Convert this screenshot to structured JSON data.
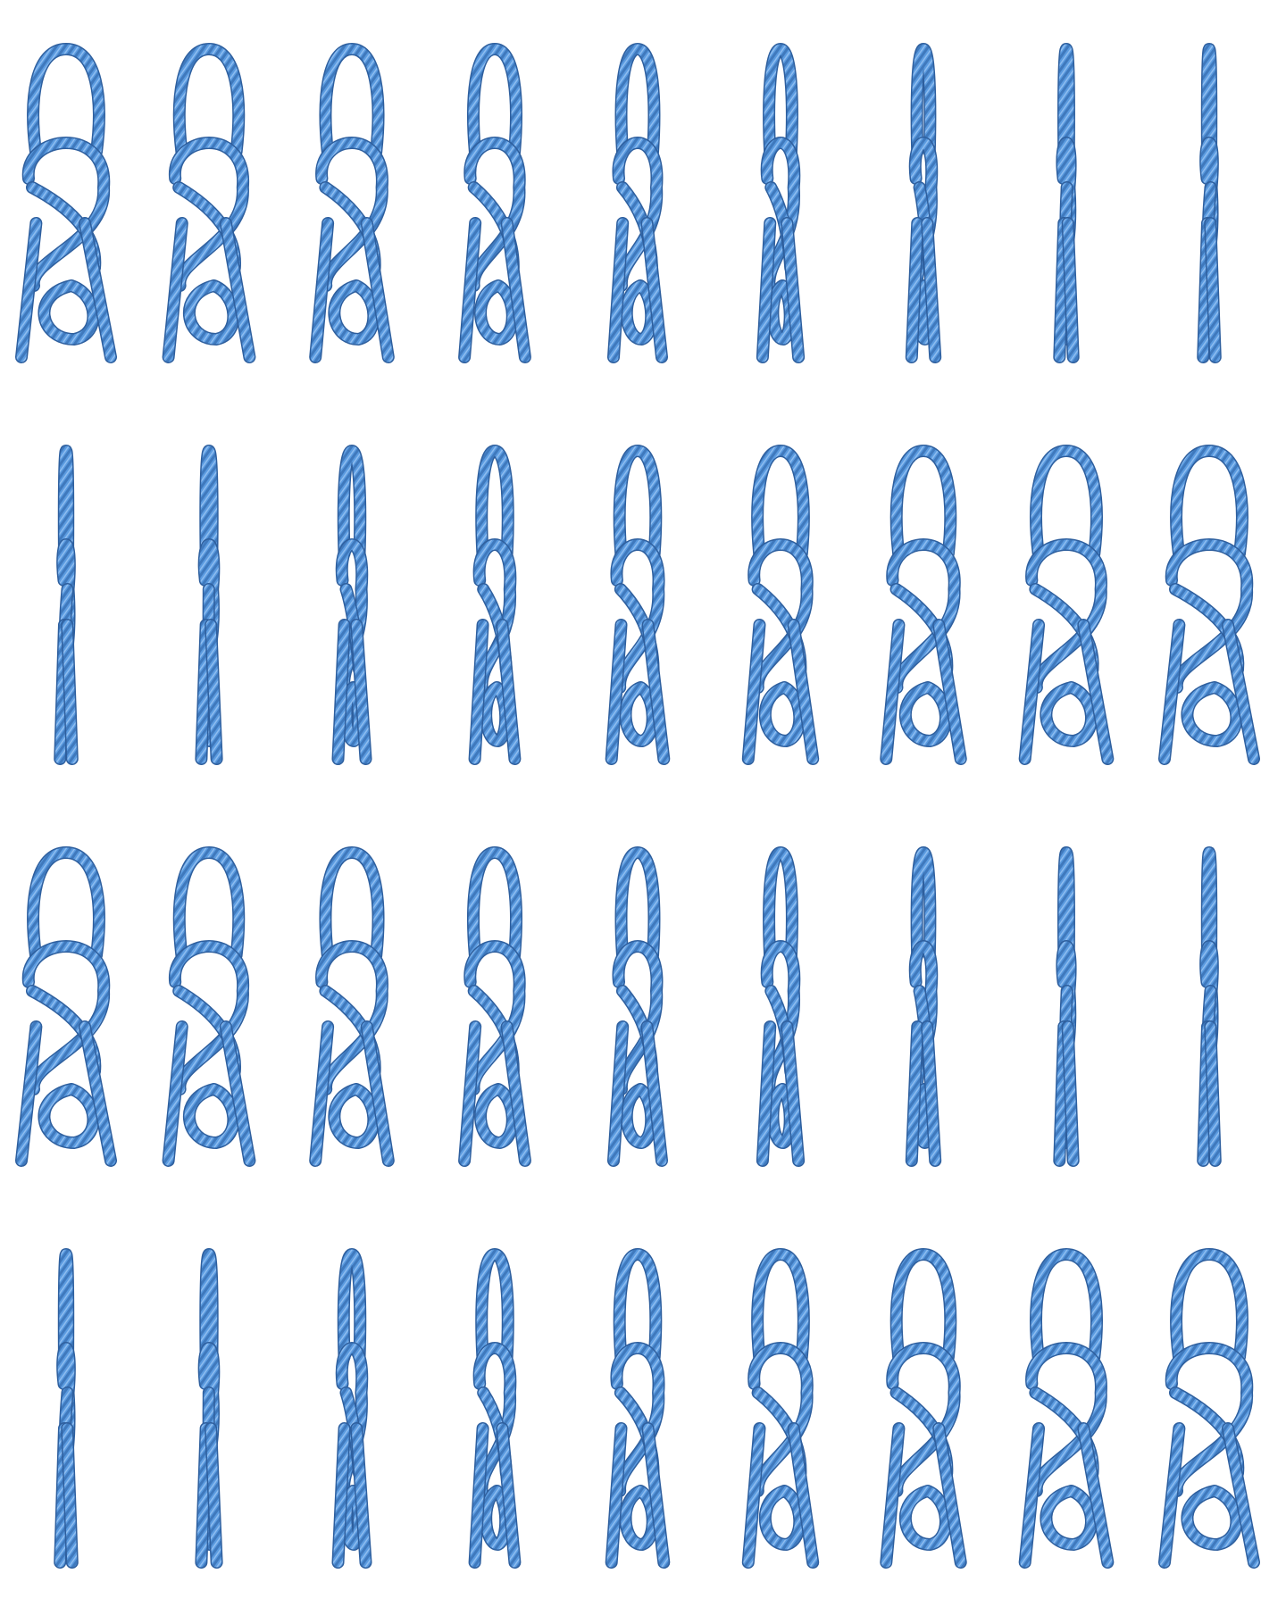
{
  "figure": {
    "description_free": true,
    "rows": 4,
    "columns": 9,
    "rope_color": "#5b9be0",
    "rope_shadow_color": "#2e5f9e",
    "rope_highlight_color": "#9cc7f5",
    "rows_data": [
      {
        "name": "row-1",
        "frames": [
          1.0,
          0.9,
          0.8,
          0.65,
          0.5,
          0.35,
          0.2,
          0.08,
          0.0
        ]
      },
      {
        "name": "row-2",
        "frames": [
          0.0,
          0.1,
          0.25,
          0.4,
          0.55,
          0.7,
          0.82,
          0.92,
          1.0
        ]
      },
      {
        "name": "row-3",
        "frames": [
          1.0,
          0.9,
          0.8,
          0.65,
          0.5,
          0.35,
          0.2,
          0.08,
          0.0
        ]
      },
      {
        "name": "row-4",
        "frames": [
          0.0,
          0.1,
          0.25,
          0.4,
          0.55,
          0.7,
          0.82,
          0.92,
          1.0
        ]
      }
    ]
  }
}
